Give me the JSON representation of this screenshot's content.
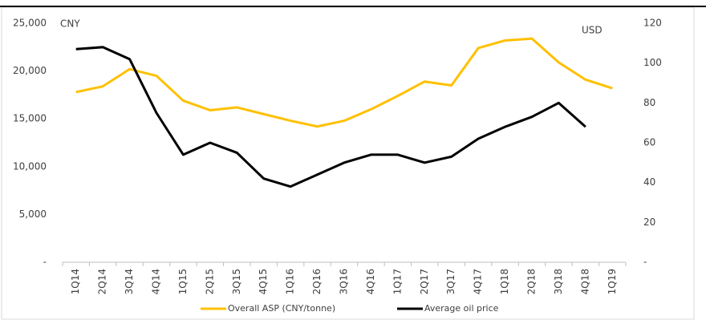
{
  "chart_data": {
    "type": "line",
    "y_label": "CNY",
    "y2_label": "USD",
    "categories": [
      "1Q14",
      "2Q14",
      "3Q14",
      "4Q14",
      "1Q15",
      "2Q15",
      "3Q15",
      "4Q15",
      "1Q16",
      "2Q16",
      "3Q16",
      "4Q16",
      "1Q17",
      "2Q17",
      "3Q17",
      "4Q17",
      "1Q18",
      "2Q18",
      "3Q18",
      "4Q18",
      "1Q19"
    ],
    "series": [
      {
        "name": "Overall ASP (CNY/tonne)",
        "color": "#ffc000",
        "axis": "y",
        "values": [
          17800,
          18400,
          20200,
          19500,
          16900,
          15900,
          16200,
          15500,
          14800,
          14200,
          14800,
          16000,
          17400,
          18900,
          18500,
          22400,
          23200,
          23400,
          20900,
          19100,
          18200
        ]
      },
      {
        "name": "Average oil price",
        "color": "#000000",
        "axis": "y2",
        "values": [
          107,
          108,
          102,
          75,
          54,
          60,
          55,
          42,
          38,
          44,
          50,
          54,
          54,
          50,
          53,
          62,
          68,
          73,
          80,
          68,
          null
        ]
      }
    ],
    "ylim": [
      0,
      25000
    ],
    "yticks": [
      {
        "value": 0,
        "label": "-"
      },
      {
        "value": 5000,
        "label": "5,000"
      },
      {
        "value": 10000,
        "label": "10,000"
      },
      {
        "value": 15000,
        "label": "15,000"
      },
      {
        "value": 20000,
        "label": "20,000"
      },
      {
        "value": 25000,
        "label": "25,000"
      }
    ],
    "y2lim": [
      0,
      120
    ],
    "y2ticks": [
      {
        "value": 0,
        "label": "-"
      },
      20,
      40,
      60,
      80,
      100,
      120
    ],
    "legend": "bottom"
  }
}
